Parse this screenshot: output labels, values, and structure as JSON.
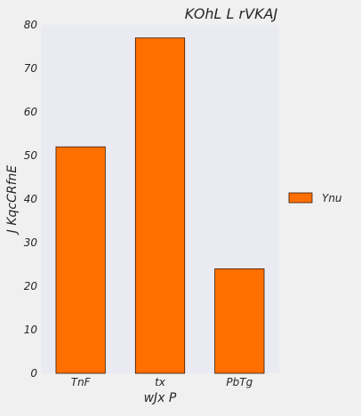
{
  "chart_data": {
    "type": "bar",
    "title": "KOhL L rVKAJ",
    "xlabel": "wJx  P",
    "ylabel": "J KqcCRfnE",
    "categories": [
      "TnF",
      "tx",
      "PbTg"
    ],
    "series": [
      {
        "name": "Ynu",
        "values": [
          52,
          77,
          24
        ]
      }
    ],
    "ylim": [
      0,
      80
    ],
    "yticks": [
      0,
      10,
      20,
      30,
      40,
      50,
      60,
      70,
      80
    ],
    "grid": false,
    "legend_position": "right",
    "colors": {
      "bar": "#ff6f00",
      "bar_edge": "#3a1a00",
      "plot_bg": "#eaeaf2",
      "page_bg": "#f0f0f0",
      "text": "#262626"
    }
  }
}
